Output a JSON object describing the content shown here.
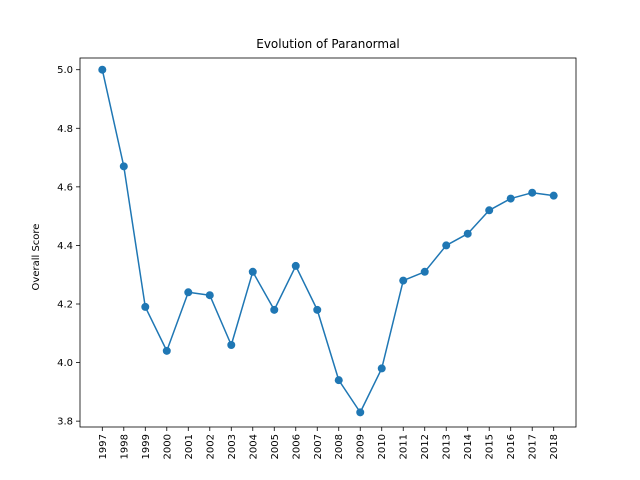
{
  "chart_data": {
    "type": "line",
    "title": "Evolution of Paranormal",
    "xlabel": "",
    "ylabel": "Overall Score",
    "x": [
      "1997",
      "1998",
      "1999",
      "2000",
      "2001",
      "2002",
      "2003",
      "2004",
      "2005",
      "2006",
      "2007",
      "2008",
      "2009",
      "2010",
      "2011",
      "2012",
      "2013",
      "2014",
      "2015",
      "2016",
      "2017",
      "2018"
    ],
    "series": [
      {
        "values": [
          5.0,
          4.67,
          4.19,
          4.04,
          4.24,
          4.23,
          4.06,
          4.31,
          4.18,
          4.33,
          4.18,
          3.94,
          3.83,
          3.98,
          4.28,
          4.31,
          4.4,
          4.44,
          4.52,
          4.56,
          4.58,
          4.57
        ],
        "color": "#1f77b4",
        "marker": "circle"
      }
    ],
    "ylim": [
      3.78,
      5.04
    ],
    "yticks": [
      3.8,
      4.0,
      4.2,
      4.4,
      4.6,
      4.8,
      5.0
    ],
    "ytick_labels": [
      "3.8",
      "4.0",
      "4.2",
      "4.4",
      "4.6",
      "4.8",
      "5.0"
    ],
    "grid": false,
    "legend": "none"
  }
}
